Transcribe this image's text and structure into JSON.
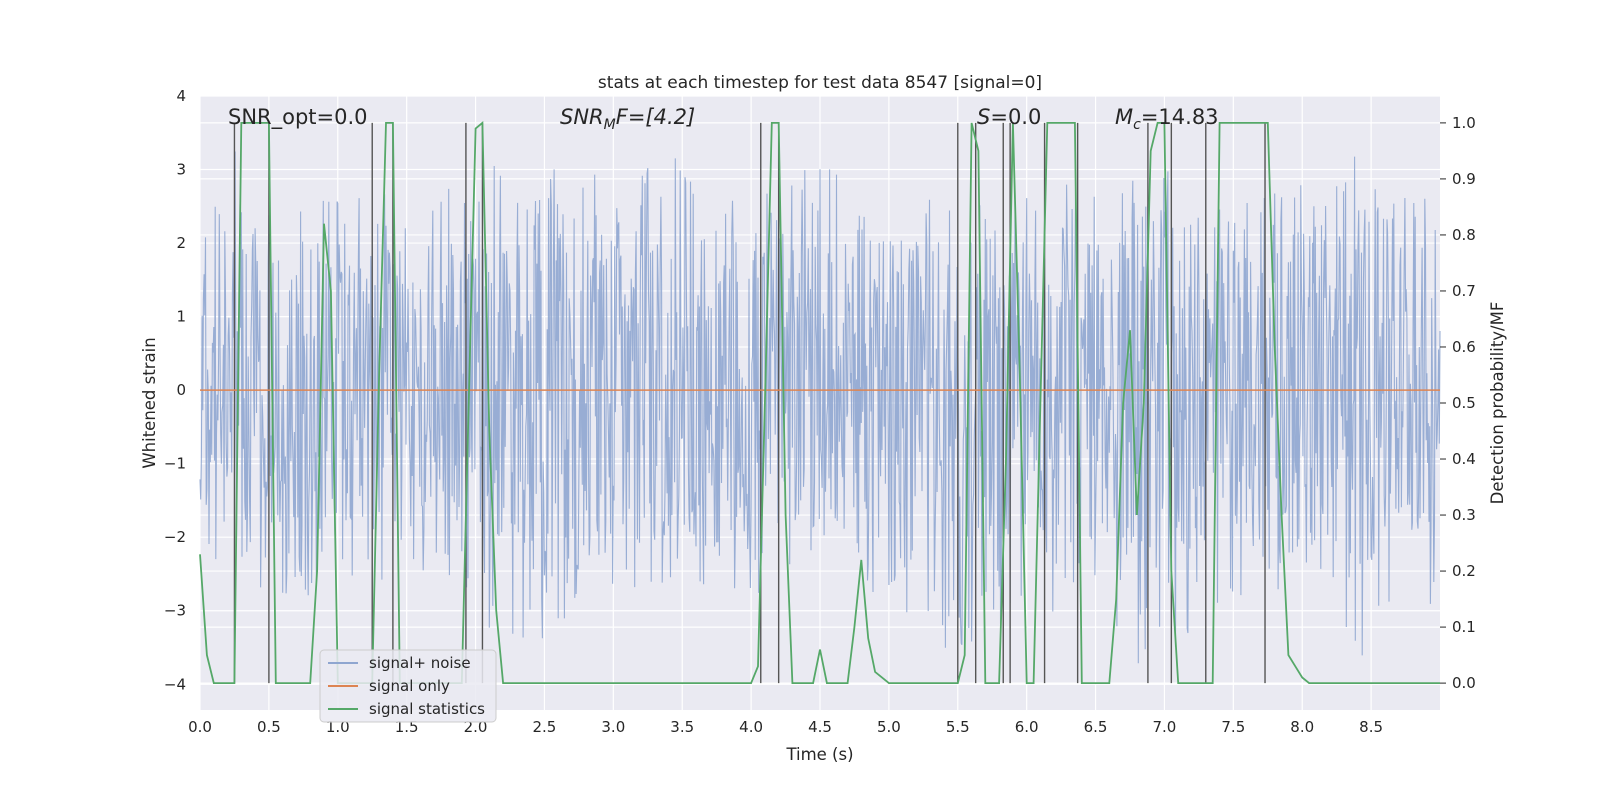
{
  "chart_data": {
    "type": "line",
    "title": "stats at each timestep for test data 8547 [signal=0]",
    "xlabel": "Time (s)",
    "ylabel_left": "Whitened strain",
    "ylabel_right": "Detection probability/MF",
    "xlim": [
      0.0,
      9.0
    ],
    "ylim_left": [
      -4.35,
      4.0
    ],
    "ylim_right": [
      -0.048,
      1.048
    ],
    "x_ticks": [
      "0.0",
      "0.5",
      "1.0",
      "1.5",
      "2.0",
      "2.5",
      "3.0",
      "3.5",
      "4.0",
      "4.5",
      "5.0",
      "5.5",
      "6.0",
      "6.5",
      "7.0",
      "7.5",
      "8.0",
      "8.5"
    ],
    "y_ticks_left": [
      "−4",
      "−3",
      "−2",
      "−1",
      "0",
      "1",
      "2",
      "3",
      "4"
    ],
    "y_ticks_right": [
      "0.0",
      "0.1",
      "0.2",
      "0.3",
      "0.4",
      "0.5",
      "0.6",
      "0.7",
      "0.8",
      "0.9",
      "1.0"
    ],
    "grid": true,
    "legend_position": "lower-left",
    "annotations": {
      "snr_opt": "SNR_opt=0.0",
      "snr_mf_sym": "SNR",
      "snr_mf_sub": "M",
      "snr_mf_rest": "F=[4.2]",
      "s_sym": "S",
      "s_rest": "=0.0",
      "mc_sym": "M",
      "mc_sub": "c",
      "mc_rest": "=14.83"
    },
    "series": [
      {
        "name": "signal+ noise",
        "color": "#8fa6d0",
        "axis": "left",
        "description_envelope_upper": [
          [
            0.0,
            2.1
          ],
          [
            0.25,
            3.3
          ],
          [
            0.5,
            2.4
          ],
          [
            1.0,
            2.7
          ],
          [
            1.3,
            2.9
          ],
          [
            1.7,
            3.0
          ],
          [
            2.0,
            3.0
          ],
          [
            2.5,
            3.6
          ],
          [
            3.0,
            2.9
          ],
          [
            3.5,
            3.2
          ],
          [
            4.0,
            2.7
          ],
          [
            4.5,
            3.2
          ],
          [
            5.0,
            2.7
          ],
          [
            5.5,
            2.8
          ],
          [
            6.0,
            2.7
          ],
          [
            6.5,
            2.9
          ],
          [
            7.0,
            3.3
          ],
          [
            7.5,
            2.6
          ],
          [
            8.0,
            2.9
          ],
          [
            8.5,
            3.3
          ],
          [
            9.0,
            2.5
          ]
        ],
        "description_envelope_lower": [
          [
            0.0,
            -2.1
          ],
          [
            0.5,
            -3.0
          ],
          [
            1.0,
            -2.7
          ],
          [
            1.5,
            -2.6
          ],
          [
            2.0,
            -2.7
          ],
          [
            2.2,
            -3.8
          ],
          [
            3.0,
            -3.0
          ],
          [
            3.5,
            -2.7
          ],
          [
            4.0,
            -3.1
          ],
          [
            4.5,
            -2.6
          ],
          [
            5.0,
            -2.8
          ],
          [
            5.5,
            -3.7
          ],
          [
            6.0,
            -3.0
          ],
          [
            6.5,
            -3.2
          ],
          [
            6.9,
            -3.9
          ],
          [
            7.5,
            -2.8
          ],
          [
            8.0,
            -2.9
          ],
          [
            8.6,
            -4.0
          ],
          [
            9.0,
            -2.8
          ]
        ]
      },
      {
        "name": "signal only",
        "color": "#dd8452",
        "axis": "left",
        "x": [
          0.0,
          9.0
        ],
        "y": [
          0.0,
          0.0
        ]
      },
      {
        "name": "signal statistics",
        "color": "#55a868",
        "axis": "right",
        "x": [
          0.0,
          0.05,
          0.1,
          0.2,
          0.25,
          0.3,
          0.35,
          0.4,
          0.45,
          0.5,
          0.55,
          0.6,
          0.7,
          0.8,
          0.85,
          0.9,
          0.95,
          1.0,
          1.05,
          1.1,
          1.15,
          1.2,
          1.25,
          1.3,
          1.35,
          1.4,
          1.45,
          1.5,
          1.6,
          1.7,
          1.8,
          1.9,
          1.95,
          2.0,
          2.05,
          2.1,
          2.15,
          2.2,
          2.3,
          2.5,
          3.0,
          3.5,
          4.0,
          4.05,
          4.1,
          4.15,
          4.2,
          4.25,
          4.3,
          4.4,
          4.45,
          4.5,
          4.55,
          4.6,
          4.7,
          4.75,
          4.8,
          4.85,
          4.9,
          5.0,
          5.5,
          5.55,
          5.6,
          5.65,
          5.7,
          5.75,
          5.8,
          5.85,
          5.9,
          5.95,
          6.0,
          6.05,
          6.1,
          6.15,
          6.2,
          6.25,
          6.3,
          6.35,
          6.4,
          6.45,
          6.5,
          6.55,
          6.6,
          6.65,
          6.7,
          6.75,
          6.8,
          6.85,
          6.9,
          6.95,
          7.0,
          7.05,
          7.1,
          7.15,
          7.2,
          7.25,
          7.3,
          7.35,
          7.4,
          7.45,
          7.5,
          7.55,
          7.6,
          7.65,
          7.7,
          7.75,
          7.8,
          7.85,
          7.9,
          7.95,
          8.0,
          8.05,
          8.1,
          8.2,
          8.5,
          9.0
        ],
        "y": [
          0.23,
          0.05,
          0.0,
          0.0,
          0.0,
          1.0,
          1.0,
          1.0,
          1.0,
          1.0,
          0.0,
          0.0,
          0.0,
          0.0,
          0.2,
          0.82,
          0.7,
          0.0,
          0.0,
          0.0,
          0.0,
          0.0,
          0.0,
          0.55,
          1.0,
          1.0,
          0.0,
          0.0,
          0.0,
          0.0,
          0.0,
          0.0,
          0.5,
          0.99,
          1.0,
          0.45,
          0.13,
          0.0,
          0.0,
          0.0,
          0.0,
          0.0,
          0.0,
          0.03,
          0.5,
          1.0,
          1.0,
          0.3,
          0.0,
          0.0,
          0.0,
          0.06,
          0.0,
          0.0,
          0.0,
          0.1,
          0.22,
          0.08,
          0.02,
          0.0,
          0.0,
          0.05,
          1.0,
          0.95,
          0.0,
          0.0,
          0.0,
          0.4,
          1.0,
          0.55,
          0.0,
          0.0,
          0.5,
          1.0,
          1.0,
          1.0,
          1.0,
          1.0,
          0.0,
          0.0,
          0.0,
          0.0,
          0.0,
          0.15,
          0.5,
          0.63,
          0.3,
          0.5,
          0.95,
          1.0,
          1.0,
          0.2,
          0.0,
          0.0,
          0.0,
          0.0,
          0.0,
          0.0,
          1.0,
          1.0,
          1.0,
          1.0,
          1.0,
          1.0,
          1.0,
          1.0,
          0.6,
          0.3,
          0.05,
          0.03,
          0.01,
          0.0,
          0.0,
          0.0,
          0.0,
          0.0
        ]
      }
    ],
    "vertical_lines_x": [
      0.25,
      0.5,
      1.25,
      1.4,
      1.93,
      2.05,
      4.07,
      4.2,
      5.5,
      5.63,
      5.83,
      5.88,
      6.13,
      6.37,
      6.88,
      7.05,
      7.3,
      7.73
    ]
  }
}
